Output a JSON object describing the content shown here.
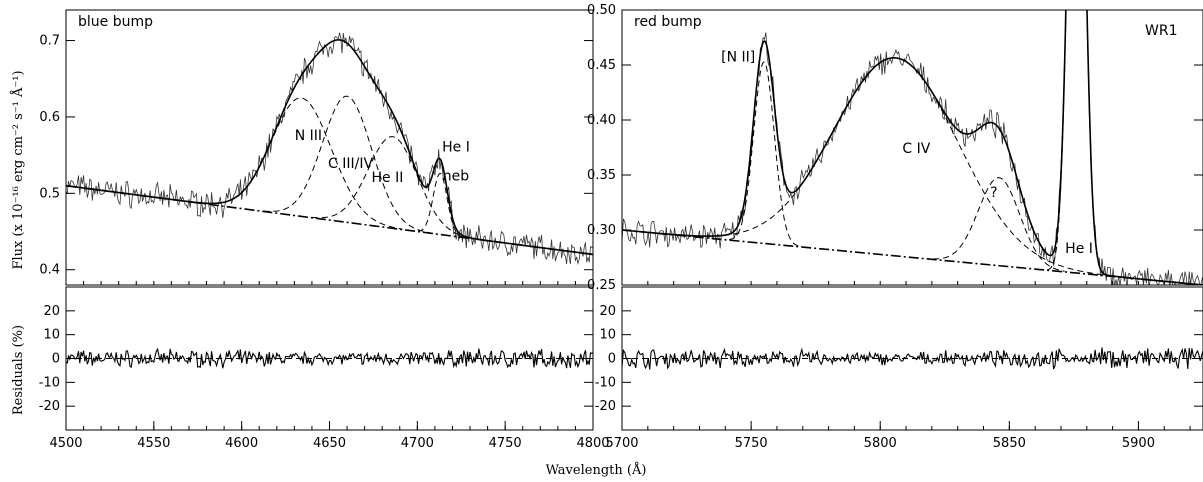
{
  "chart_data": [
    {
      "type": "line",
      "panel": "blue bump",
      "title": "blue bump",
      "title_color": "#1f1fd6",
      "xlabel": "Wavelength (Å)",
      "ylabel": "Flux (x 10⁻¹⁶ erg cm⁻² s⁻¹ Å⁻¹)",
      "xlim": [
        4500,
        4800
      ],
      "ylim": [
        0.38,
        0.74
      ],
      "xticks": [
        4500,
        4550,
        4600,
        4650,
        4700,
        4750,
        4800
      ],
      "yticks": [
        0.4,
        0.5,
        0.6,
        0.7
      ],
      "ytick_labels": [
        "0.4",
        "0.5",
        "0.6",
        "0.7"
      ],
      "continuum": {
        "x": [
          4500,
          4800
        ],
        "y": [
          0.51,
          0.42
        ]
      },
      "gaussians": [
        {
          "label": "N III",
          "center": 4634,
          "sigma": 17,
          "amp": 0.155
        },
        {
          "label": "C III/IV",
          "center": 4660,
          "sigma": 14,
          "amp": 0.165
        },
        {
          "label": "He II",
          "center": 4686,
          "sigma": 14,
          "amp": 0.12
        },
        {
          "label": "He I",
          "center": 4713,
          "sigma": 4,
          "amp": 0.08
        }
      ],
      "annotations": [
        {
          "text": "N III",
          "x": 4638,
          "y": 0.57
        },
        {
          "text": "C III/IV",
          "x": 4662,
          "y": 0.533
        },
        {
          "text": "He II",
          "x": 4683,
          "y": 0.515
        },
        {
          "text": "He I",
          "x": 4722,
          "y": 0.555
        },
        {
          "text": "neb",
          "x": 4722,
          "y": 0.517
        }
      ],
      "residuals": {
        "ylabel": "Residuals (%)",
        "ylim": [
          -30,
          30
        ],
        "yticks": [
          -20,
          -10,
          0,
          10,
          20
        ]
      }
    },
    {
      "type": "line",
      "panel": "red bump",
      "title": "red bump",
      "title_color": "#e01b1b",
      "corner_label": "WR1",
      "xlim": [
        5700,
        5925
      ],
      "ylim": [
        0.25,
        0.5
      ],
      "xticks": [
        5700,
        5750,
        5800,
        5850,
        5900
      ],
      "yticks": [
        0.25,
        0.3,
        0.35,
        0.4,
        0.45,
        0.5
      ],
      "ytick_labels": [
        "0.25",
        "0.30",
        "0.35",
        "0.40",
        "0.45",
        "0.50"
      ],
      "continuum": {
        "x": [
          5700,
          5925
        ],
        "y": [
          0.3,
          0.25
        ]
      },
      "gaussians": [
        {
          "label": "[N II]",
          "center": 5755,
          "sigma": 4,
          "amp": 0.165
        },
        {
          "label": "C IV",
          "center": 5806,
          "sigma": 24,
          "amp": 0.18
        },
        {
          "label": "?",
          "center": 5846,
          "sigma": 8,
          "amp": 0.08
        },
        {
          "label": "He I",
          "center": 5876,
          "sigma": 3,
          "amp": 0.6
        }
      ],
      "annotations": [
        {
          "text": "[N II]",
          "x": 5745,
          "y": 0.453
        },
        {
          "text": "C IV",
          "x": 5814,
          "y": 0.37
        },
        {
          "text": "?",
          "x": 5844,
          "y": 0.33
        },
        {
          "text": "He I",
          "x": 5877,
          "y": 0.279
        }
      ],
      "residuals": {
        "ylim": [
          -30,
          30
        ],
        "yticks": [
          -20,
          -10,
          0,
          10,
          20
        ]
      }
    }
  ]
}
